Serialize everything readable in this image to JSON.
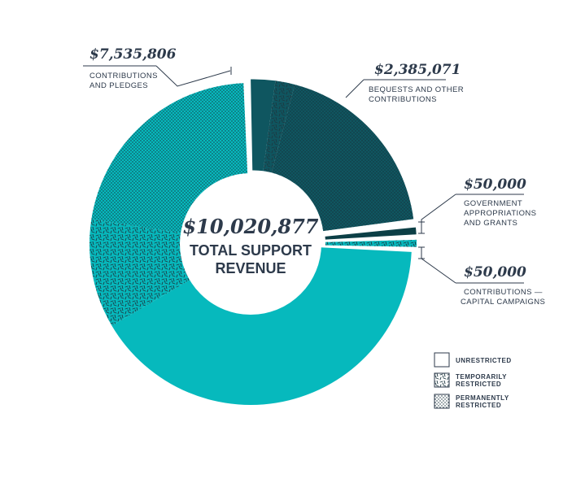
{
  "colors": {
    "teal_light": "#06b9bd",
    "teal_mid": "#0b8f94",
    "teal_dark": "#0f5660",
    "teal_darkest": "#0c3f46",
    "text": "#2d3a4b"
  },
  "chart_data": {
    "type": "pie",
    "style": "donut",
    "center": {
      "total": "$10,020,877",
      "label_line1": "TOTAL SUPPORT",
      "label_line2": "REVENUE"
    },
    "categories": [
      {
        "key": "contributions_pledges",
        "amount_label": "$7,535,806",
        "caption": [
          "CONTRIBUTIONS",
          "AND PLEDGES"
        ],
        "value": 7535806,
        "color": "#06b9bd",
        "segments": [
          {
            "restriction": "unrestricted",
            "share": 0.41
          },
          {
            "restriction": "temporarily_restricted",
            "share": 0.11
          },
          {
            "restriction": "permanently_restricted",
            "share": 0.22
          }
        ]
      },
      {
        "key": "bequests",
        "amount_label": "$2,385,071",
        "caption": [
          "BEQUESTS AND OTHER",
          "CONTRIBUTIONS"
        ],
        "value": 2385071,
        "color": "#0f5660",
        "segments": [
          {
            "restriction": "unrestricted",
            "share": 0.025
          },
          {
            "restriction": "temporarily_restricted",
            "share": 0.02
          },
          {
            "restriction": "permanently_restricted",
            "share": 0.192
          }
        ]
      },
      {
        "key": "government",
        "amount_label": "$50,000",
        "caption": [
          "GOVERNMENT",
          "APPROPRIATIONS",
          "AND GRANTS"
        ],
        "value": 50000,
        "color": "#0c3f46",
        "segments": [
          {
            "restriction": "unrestricted",
            "share": 0.012
          }
        ]
      },
      {
        "key": "capital_campaigns",
        "amount_label": "$50,000",
        "caption": [
          "CONTRIBUTIONS —",
          "CAPITAL CAMPAIGNS"
        ],
        "value": 50000,
        "color": "#06b9bd",
        "segments": [
          {
            "restriction": "temporarily_restricted",
            "share": 0.012
          }
        ]
      }
    ],
    "legend": {
      "placement": "bottom-right",
      "items": [
        {
          "key": "unrestricted",
          "label_lines": [
            "UNRESTRICTED"
          ]
        },
        {
          "key": "temporarily_restricted",
          "label_lines": [
            "TEMPORARILY",
            "RESTRICTED"
          ]
        },
        {
          "key": "permanently_restricted",
          "label_lines": [
            "PERMANENTLY",
            "RESTRICTED"
          ]
        }
      ]
    }
  }
}
